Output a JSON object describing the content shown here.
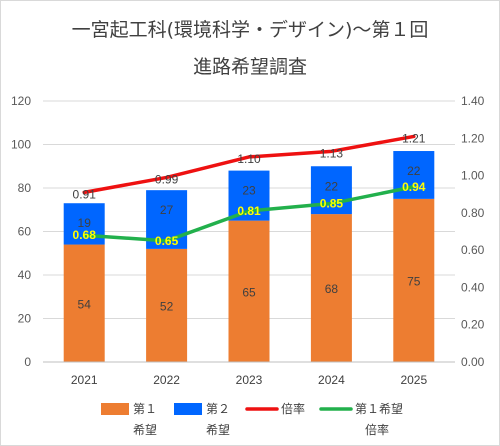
{
  "chart_data": {
    "type": "bar",
    "title": "一宮起工科(環境科学・デザイン)～第１回",
    "subtitle": "進路希望調査",
    "categories": [
      "2021",
      "2022",
      "2023",
      "2024",
      "2025"
    ],
    "series": [
      {
        "name": "第１希望",
        "type": "bar",
        "axis": "left",
        "color": "#ed7d31",
        "values": [
          54,
          52,
          65,
          68,
          75
        ]
      },
      {
        "name": "第２希望",
        "type": "bar",
        "axis": "left",
        "color": "#0066ff",
        "values": [
          19,
          27,
          23,
          22,
          22
        ]
      },
      {
        "name": "倍率",
        "type": "line",
        "axis": "right",
        "color": "#ee1111",
        "values": [
          0.91,
          0.99,
          1.1,
          1.13,
          1.21
        ]
      },
      {
        "name": "第１希望倍率",
        "type": "line",
        "axis": "right",
        "color": "#22b04c",
        "values": [
          0.68,
          0.65,
          0.81,
          0.85,
          0.94
        ]
      }
    ],
    "y_left": {
      "min": 0,
      "max": 120,
      "step": 20,
      "ticks": [
        "0",
        "20",
        "40",
        "60",
        "80",
        "100",
        "120"
      ]
    },
    "y_right": {
      "min": 0,
      "max": 1.4,
      "step": 0.2,
      "ticks": [
        "0.00",
        "0.20",
        "0.40",
        "0.60",
        "0.80",
        "1.00",
        "1.20",
        "1.40"
      ]
    },
    "data_labels": {
      "bar1": [
        "54",
        "52",
        "65",
        "68",
        "75"
      ],
      "bar2": [
        "19",
        "27",
        "23",
        "22",
        "22"
      ],
      "line1": [
        "0.91",
        "0.99",
        "1.10",
        "1.13",
        "1.21"
      ],
      "line2": [
        "0.68",
        "0.65",
        "0.81",
        "0.85",
        "0.94"
      ]
    },
    "legend": {
      "position": "bottom",
      "items": [
        {
          "line1": "第１",
          "line2": "希望",
          "swatch": "box",
          "color": "#ed7d31"
        },
        {
          "line1": "第２",
          "line2": "希望",
          "swatch": "box",
          "color": "#0066ff"
        },
        {
          "line1": "倍率",
          "line2": "",
          "swatch": "line",
          "color": "#ee1111"
        },
        {
          "line1": "第１希望",
          "line2": "倍率",
          "swatch": "line",
          "color": "#22b04c"
        }
      ]
    },
    "grid": true
  }
}
